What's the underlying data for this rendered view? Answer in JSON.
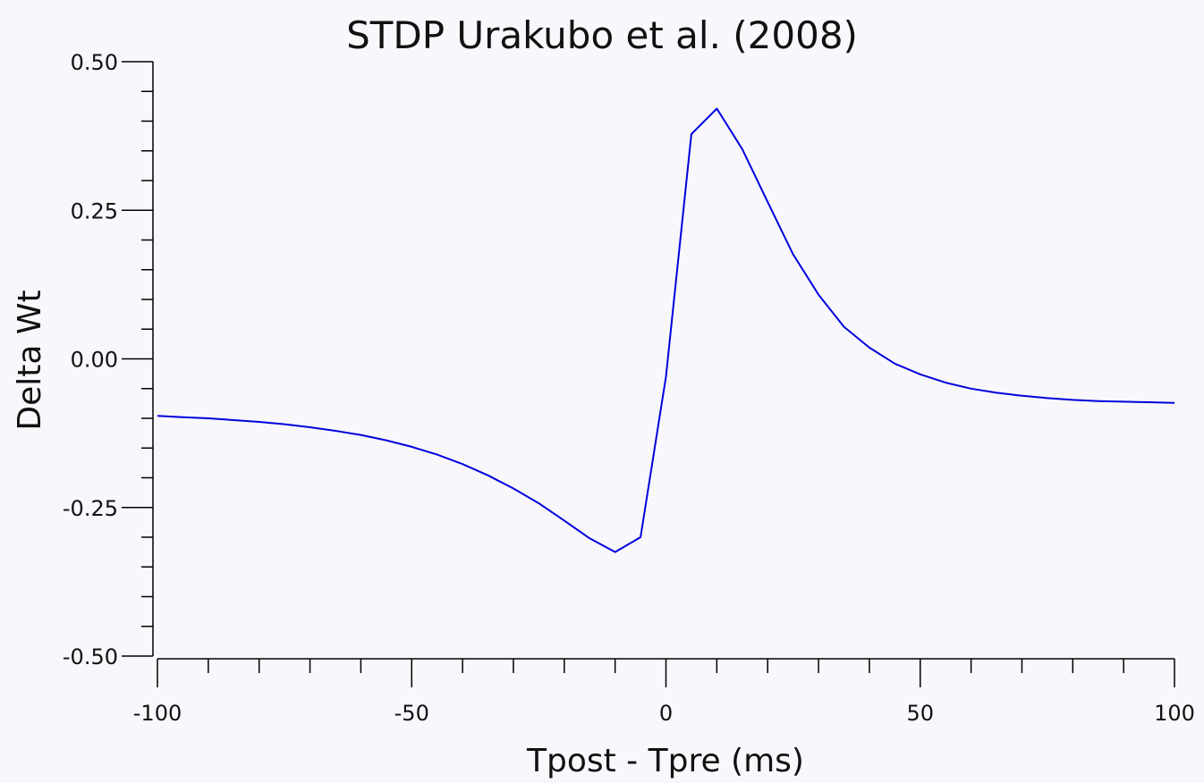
{
  "chart_data": {
    "type": "line",
    "title": "STDP Urakubo et al. (2008)",
    "xlabel": "Tpost - Tpre (ms)",
    "ylabel": "Delta Wt",
    "xlim": [
      -100,
      100
    ],
    "ylim": [
      -0.5,
      0.5
    ],
    "x_ticks": [
      -100,
      -50,
      0,
      50,
      100
    ],
    "x_tick_labels": [
      "-100",
      "-50",
      "0",
      "50",
      "100"
    ],
    "x_minor_step": 10,
    "y_ticks": [
      -0.5,
      -0.25,
      0,
      0.25,
      0.5
    ],
    "y_tick_labels": [
      "-0.50",
      "-0.25",
      "0.00",
      "0.25",
      "0.50"
    ],
    "y_minor_step": 0.05,
    "grid": false,
    "legend": "none",
    "series": [
      {
        "color": "#0000dd",
        "x": [
          -100,
          -95,
          -90,
          -85,
          -80,
          -75,
          -70,
          -65,
          -60,
          -55,
          -50,
          -45,
          -40,
          -35,
          -30,
          -25,
          -20,
          -15,
          -10,
          -5,
          0,
          5,
          10,
          15,
          20,
          25,
          30,
          35,
          40,
          45,
          50,
          55,
          60,
          65,
          70,
          75,
          80,
          85,
          90,
          95,
          100
        ],
        "y": [
          -0.096,
          -0.098,
          -0.1,
          -0.103,
          -0.106,
          -0.11,
          -0.115,
          -0.121,
          -0.128,
          -0.137,
          -0.148,
          -0.161,
          -0.177,
          -0.196,
          -0.218,
          -0.243,
          -0.272,
          -0.302,
          -0.325,
          -0.3,
          -0.03,
          0.378,
          0.421,
          0.353,
          0.264,
          0.176,
          0.108,
          0.054,
          0.019,
          -0.008,
          -0.026,
          -0.04,
          -0.05,
          -0.057,
          -0.062,
          -0.066,
          -0.069,
          -0.071,
          -0.072,
          -0.073,
          -0.074
        ]
      }
    ]
  }
}
